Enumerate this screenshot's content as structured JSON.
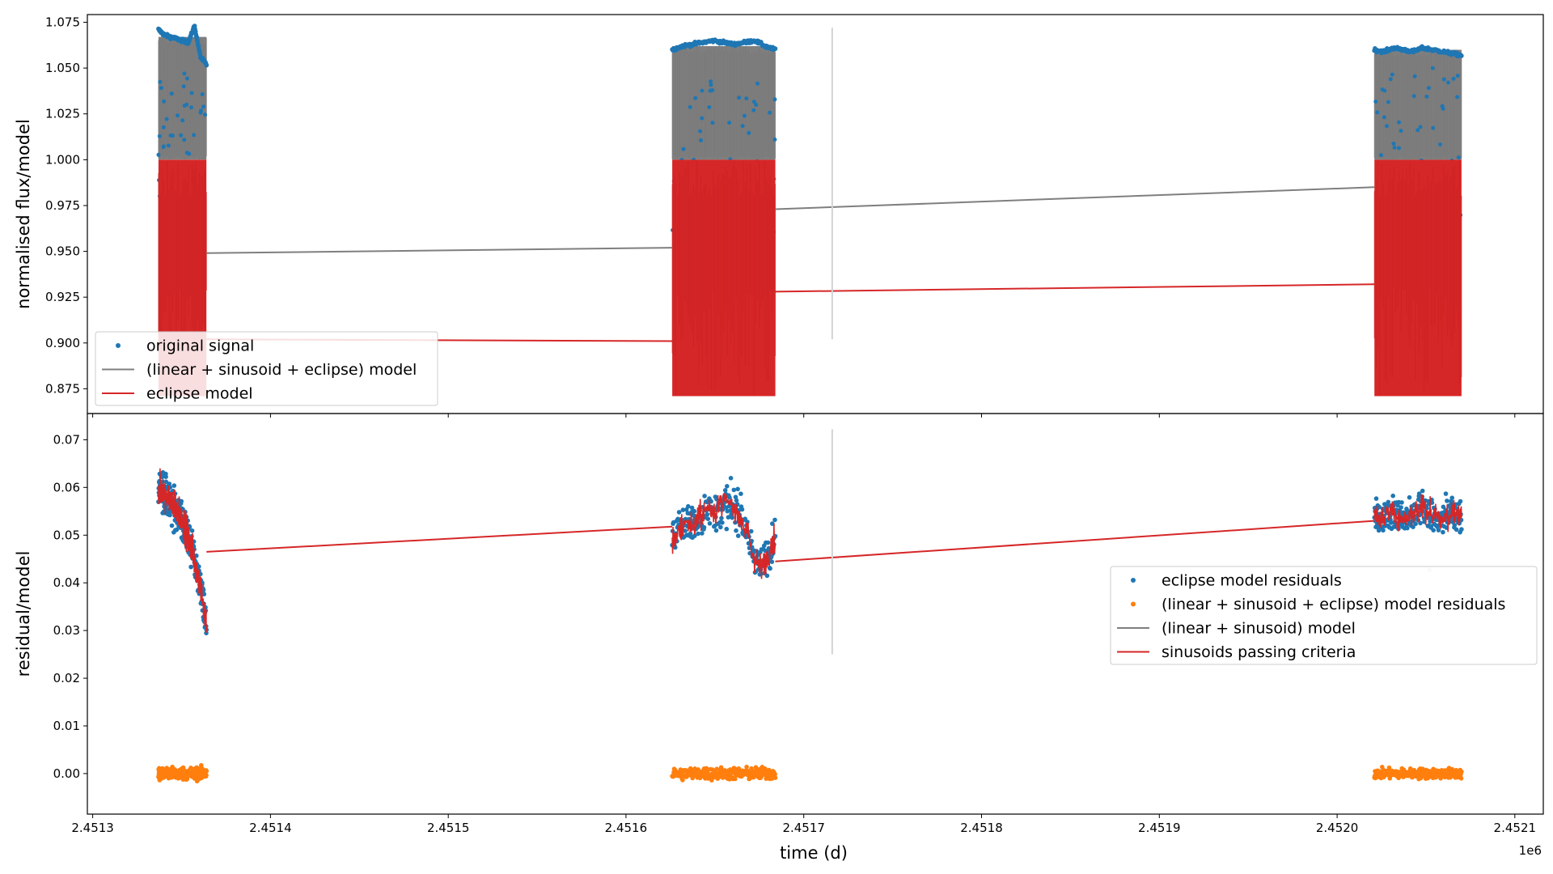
{
  "figure": {
    "x_axis_label": "time (d)",
    "x_offset_label": "1e6"
  },
  "chart_data": [
    {
      "type": "scatter",
      "panel": "top",
      "ylabel": "normalised flux/model",
      "xlabel": "",
      "xlim": [
        2451297,
        2452116
      ],
      "ylim": [
        0.8615,
        1.0792
      ],
      "x_scale_factor": 1000000,
      "x_ticks": [
        2451300,
        2451400,
        2451500,
        2451600,
        2451700,
        2451800,
        2451900,
        2452000,
        2452100
      ],
      "x_tick_labels": [
        "2.4513",
        "2.4514",
        "2.4515",
        "2.4516",
        "2.4517",
        "2.4518",
        "2.4519",
        "2.4520",
        "2.4521"
      ],
      "y_ticks": [
        0.875,
        0.9,
        0.925,
        0.95,
        0.975,
        1.0,
        1.025,
        1.05,
        1.075
      ],
      "y_tick_labels": [
        "0.875",
        "0.900",
        "0.925",
        "0.950",
        "0.975",
        "1.000",
        "1.025",
        "1.050",
        "1.075"
      ],
      "grid": false,
      "legend_position": "bottom-left",
      "legend": [
        {
          "label": "original signal",
          "marker": "dot",
          "color": "#1f77b4"
        },
        {
          "label": "(linear + sinusoid + eclipse) model",
          "marker": "line",
          "color": "#7f7f7f"
        },
        {
          "label": "eclipse model",
          "marker": "line",
          "color": "#d62728"
        }
      ],
      "observing_blocks_x": [
        [
          2451337,
          2451364
        ],
        [
          2451626,
          2451684
        ],
        [
          2452021,
          2452070
        ]
      ],
      "series": [
        {
          "name": "original signal",
          "kind": "scatter_band",
          "color": "#1f77b4",
          "blocks": [
            {
              "x": [
                2451337,
                2451364
              ],
              "upper_envelope": [
                1.071,
                1.068,
                1.067,
                1.066,
                1.065,
                1.064,
                1.073,
                1.056,
                1.052
              ],
              "base": 0.96
            },
            {
              "x": [
                2451626,
                2451684
              ],
              "upper_envelope": [
                1.06,
                1.062,
                1.063,
                1.064,
                1.065,
                1.064,
                1.063,
                1.064,
                1.065,
                1.062,
                1.06
              ],
              "base": 0.96
            },
            {
              "x": [
                2452021,
                2452070
              ],
              "upper_envelope": [
                1.06,
                1.059,
                1.061,
                1.06,
                1.059,
                1.061,
                1.06,
                1.059,
                1.058,
                1.057
              ],
              "base": 0.96
            }
          ]
        },
        {
          "name": "(linear + sinusoid + eclipse) model",
          "kind": "band_and_line",
          "color": "#7f7f7f",
          "blocks": [
            {
              "x": [
                2451337,
                2451364
              ],
              "band": [
                1.0,
                1.067
              ]
            },
            {
              "x": [
                2451626,
                2451684
              ],
              "band": [
                1.0,
                1.062
              ]
            },
            {
              "x": [
                2452021,
                2452070
              ],
              "band": [
                1.0,
                1.06
              ]
            }
          ],
          "connector_x": [
            2451364,
            2451626,
            2451684,
            2452021
          ],
          "connector_y": [
            0.949,
            0.952,
            0.973,
            0.985
          ]
        },
        {
          "name": "eclipse model",
          "kind": "band_and_line",
          "color": "#d62728",
          "blocks": [
            {
              "x": [
                2451337,
                2451364
              ],
              "band": [
                0.871,
                1.0
              ]
            },
            {
              "x": [
                2451626,
                2451684
              ],
              "band": [
                0.871,
                1.0
              ]
            },
            {
              "x": [
                2452021,
                2452070
              ],
              "band": [
                0.871,
                1.0
              ]
            }
          ],
          "connector_x": [
            2451364,
            2451626,
            2451684,
            2452021
          ],
          "connector_y": [
            0.902,
            0.901,
            0.928,
            0.932
          ]
        }
      ],
      "annotations": [
        {
          "kind": "vertical_line",
          "x": 2451716,
          "y_range": [
            0.902,
            1.072
          ],
          "color": "#d3d3d3"
        }
      ]
    },
    {
      "type": "scatter",
      "panel": "bottom",
      "ylabel": "residual/model",
      "xlabel": "time (d)",
      "xlim": [
        2451297,
        2452116
      ],
      "ylim": [
        -0.0085,
        0.0755
      ],
      "x_scale_factor": 1000000,
      "x_ticks": [
        2451300,
        2451400,
        2451500,
        2451600,
        2451700,
        2451800,
        2451900,
        2452000,
        2452100
      ],
      "x_tick_labels": [
        "2.4513",
        "2.4514",
        "2.4515",
        "2.4516",
        "2.4517",
        "2.4518",
        "2.4519",
        "2.4520",
        "2.4521"
      ],
      "y_ticks": [
        0.0,
        0.01,
        0.02,
        0.03,
        0.04,
        0.05,
        0.06,
        0.07
      ],
      "y_tick_labels": [
        "0.00",
        "0.01",
        "0.02",
        "0.03",
        "0.04",
        "0.05",
        "0.06",
        "0.07"
      ],
      "grid": false,
      "legend_position": "center-right",
      "legend": [
        {
          "label": "eclipse model residuals",
          "marker": "dot",
          "color": "#1f77b4"
        },
        {
          "label": "(linear + sinusoid + eclipse) model residuals",
          "marker": "dot",
          "color": "#ff7f0e"
        },
        {
          "label": "(linear + sinusoid) model",
          "marker": "line",
          "color": "#7f7f7f"
        },
        {
          "label": "sinusoids passing criteria",
          "marker": "line",
          "color": "#d62728"
        }
      ],
      "series": [
        {
          "name": "eclipse model residuals",
          "kind": "scatter_band",
          "color": "#1f77b4",
          "blocks": [
            {
              "x": [
                2451337,
                2451364
              ],
              "center": [
                0.06,
                0.059,
                0.058,
                0.057,
                0.055,
                0.054,
                0.052,
                0.049,
                0.046,
                0.042,
                0.037,
                0.031
              ],
              "spread": 0.008
            },
            {
              "x": [
                2451626,
                2451684
              ],
              "center": [
                0.049,
                0.051,
                0.053,
                0.052,
                0.054,
                0.056,
                0.055,
                0.057,
                0.056,
                0.055,
                0.051,
                0.046,
                0.043,
                0.046,
                0.05
              ],
              "spread": 0.007
            },
            {
              "x": [
                2452021,
                2452070
              ],
              "center": [
                0.054,
                0.054,
                0.055,
                0.053,
                0.054,
                0.056,
                0.054,
                0.053,
                0.055,
                0.054
              ],
              "spread": 0.006
            }
          ]
        },
        {
          "name": "(linear + sinusoid + eclipse) model residuals",
          "kind": "scatter_band",
          "color": "#ff7f0e",
          "blocks": [
            {
              "x": [
                2451337,
                2451364
              ],
              "center": [
                0.0
              ],
              "spread": 0.0022
            },
            {
              "x": [
                2451626,
                2451684
              ],
              "center": [
                0.0
              ],
              "spread": 0.0022
            },
            {
              "x": [
                2452021,
                2452070
              ],
              "center": [
                0.0
              ],
              "spread": 0.0018
            }
          ]
        },
        {
          "name": "sinusoids passing criteria",
          "kind": "noisy_line",
          "color": "#d62728",
          "connector_x": [
            2451364,
            2451626,
            2451684,
            2452021
          ],
          "connector_y": [
            0.0465,
            0.0518,
            0.0445,
            0.053
          ]
        }
      ],
      "annotations": [
        {
          "kind": "vertical_line",
          "x": 2451716,
          "y_range": [
            0.025,
            0.0722
          ],
          "color": "#d3d3d3"
        },
        {
          "kind": "point",
          "x": 2452052,
          "y": 0.0428,
          "color": "#d3d3d3"
        }
      ]
    }
  ]
}
